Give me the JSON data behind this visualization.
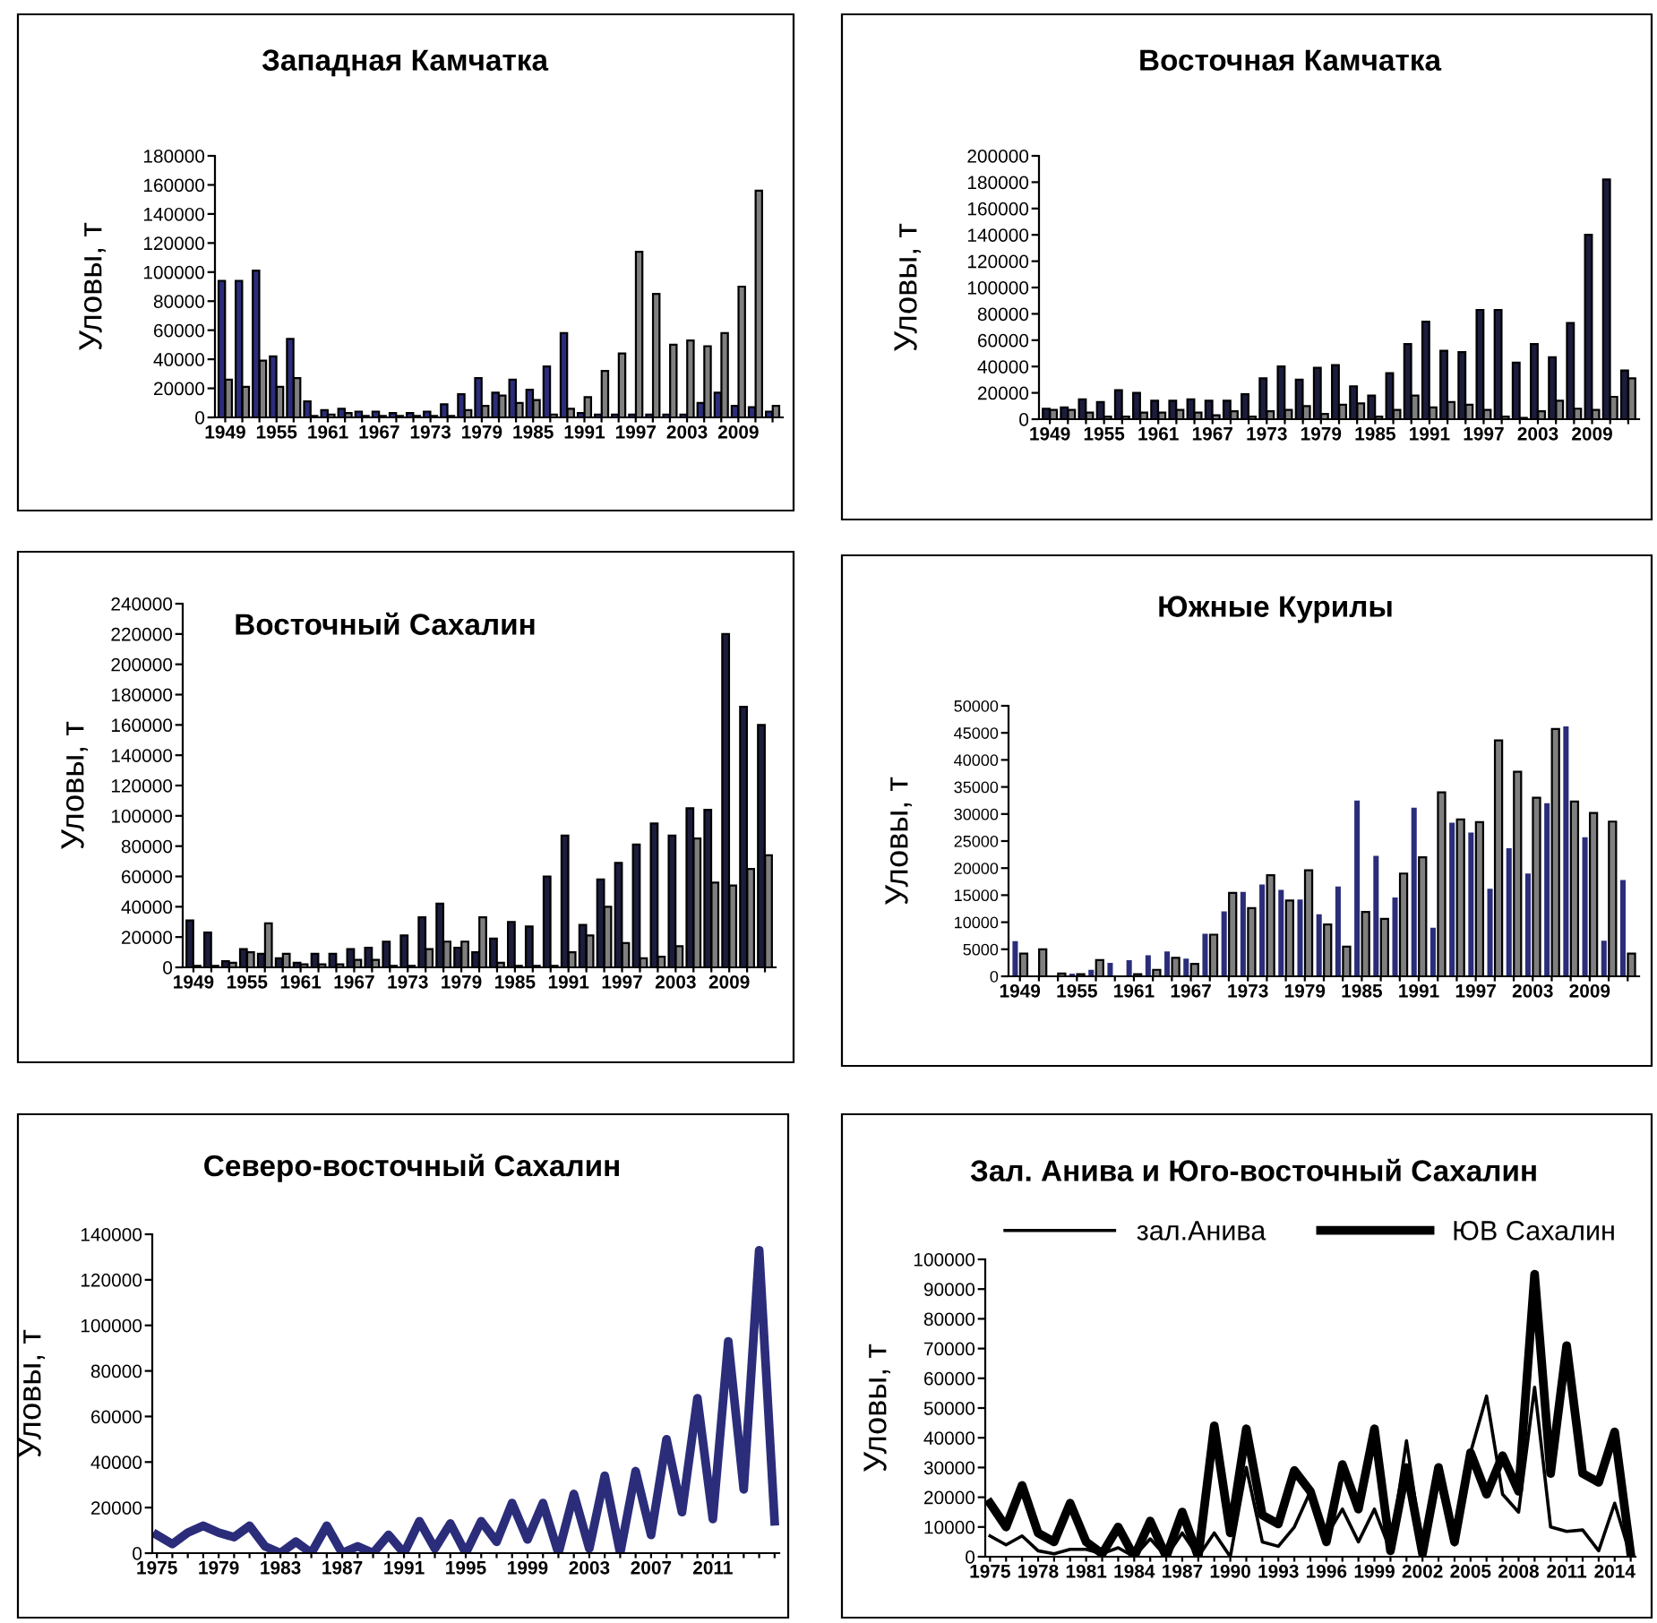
{
  "chart_data": [
    {
      "type": "bar",
      "title": "Западная Камчатка",
      "ylabel": "Уловы, т",
      "legend": false,
      "grid": false,
      "categories": [
        "1949",
        null,
        null,
        "1955",
        null,
        null,
        "1961",
        null,
        null,
        "1967",
        null,
        null,
        "1973",
        null,
        null,
        "1979",
        null,
        null,
        "1985",
        null,
        null,
        "1991",
        null,
        null,
        "1997",
        null,
        null,
        "2003",
        null,
        null,
        "2009",
        null,
        null
      ],
      "ylim": [
        0,
        180000
      ],
      "yticks": [
        0,
        20000,
        40000,
        60000,
        80000,
        100000,
        120000,
        140000,
        160000,
        180000
      ],
      "series": [
        {
          "color": "#2b2d7a",
          "values": [
            94000,
            94000,
            101000,
            42000,
            54000,
            11000,
            5000,
            6000,
            4000,
            4000,
            3000,
            3000,
            4000,
            9000,
            16000,
            27000,
            17000,
            26000,
            19000,
            35000,
            58000,
            3000,
            2000,
            2000,
            2000,
            2000,
            2000,
            2000,
            10000,
            17000,
            8000,
            7000,
            4000
          ]
        },
        {
          "color": "#7f7f7f",
          "values": [
            26000,
            21000,
            39000,
            21000,
            27000,
            1000,
            2000,
            3000,
            1000,
            1000,
            1000,
            1000,
            1000,
            1000,
            5000,
            8000,
            15000,
            10000,
            12000,
            2000,
            6000,
            14000,
            32000,
            44000,
            114000,
            85000,
            50000,
            53000,
            49000,
            58000,
            90000,
            156000,
            8000
          ]
        }
      ]
    },
    {
      "type": "bar",
      "title": "Восточная Камчатка",
      "ylabel": "Уловы, т",
      "legend": false,
      "grid": false,
      "categories": [
        "1949",
        null,
        null,
        "1955",
        null,
        null,
        "1961",
        null,
        null,
        "1967",
        null,
        null,
        "1973",
        null,
        null,
        "1979",
        null,
        null,
        "1985",
        null,
        null,
        "1991",
        null,
        null,
        "1997",
        null,
        null,
        "2003",
        null,
        null,
        "2009",
        null,
        null
      ],
      "ylim": [
        0,
        200000
      ],
      "yticks": [
        0,
        20000,
        40000,
        60000,
        80000,
        100000,
        120000,
        140000,
        160000,
        180000,
        200000
      ],
      "series": [
        {
          "color": "#1c1c3c",
          "values": [
            8000,
            9000,
            15000,
            13000,
            22000,
            20000,
            14000,
            14000,
            15000,
            14000,
            14000,
            19000,
            31000,
            40000,
            30000,
            39000,
            41000,
            25000,
            18000,
            35000,
            57000,
            74000,
            52000,
            51000,
            83000,
            83000,
            43000,
            57000,
            47000,
            73000,
            140000,
            182000,
            37000
          ]
        },
        {
          "color": "#7f7f7f",
          "values": [
            7000,
            7000,
            5000,
            2000,
            2000,
            5000,
            5000,
            7000,
            5000,
            3000,
            6000,
            2000,
            6000,
            7000,
            10000,
            4000,
            11000,
            12000,
            2000,
            7000,
            18000,
            9000,
            13000,
            11000,
            7000,
            2000,
            1000,
            6000,
            14000,
            8000,
            7000,
            17000,
            31000
          ]
        }
      ]
    },
    {
      "type": "bar",
      "title": "Восточный Сахалин",
      "ylabel": "Уловы, т",
      "legend": false,
      "grid": false,
      "categories": [
        "1949",
        null,
        null,
        "1955",
        null,
        null,
        "1961",
        null,
        null,
        "1967",
        null,
        null,
        "1973",
        null,
        null,
        "1979",
        null,
        null,
        "1985",
        null,
        null,
        "1991",
        null,
        null,
        "1997",
        null,
        null,
        "2003",
        null,
        null,
        "2009",
        null,
        null
      ],
      "ylim": [
        0,
        240000
      ],
      "yticks": [
        0,
        20000,
        40000,
        60000,
        80000,
        100000,
        120000,
        140000,
        160000,
        180000,
        200000,
        220000,
        240000
      ],
      "series": [
        {
          "color": "#1c1c3c",
          "values": [
            31000,
            23000,
            4000,
            12000,
            9000,
            6000,
            3000,
            9000,
            9000,
            12000,
            13000,
            17000,
            21000,
            33000,
            42000,
            13000,
            10000,
            19000,
            30000,
            27000,
            60000,
            87000,
            28000,
            58000,
            69000,
            81000,
            95000,
            87000,
            105000,
            104000,
            220000,
            172000,
            160000
          ]
        },
        {
          "color": "#7f7f7f",
          "values": [
            1000,
            1000,
            3000,
            10000,
            29000,
            9000,
            2000,
            2000,
            2000,
            5000,
            5000,
            1000,
            1000,
            12000,
            17000,
            17000,
            33000,
            3000,
            1000,
            1000,
            1000,
            10000,
            21000,
            40000,
            16000,
            6000,
            7000,
            14000,
            85000,
            56000,
            54000,
            65000,
            74000
          ]
        }
      ]
    },
    {
      "type": "bar",
      "title": "Южные Курилы",
      "ylabel": "Уловы, т",
      "legend": false,
      "grid": false,
      "categories": [
        "1949",
        null,
        null,
        "1955",
        null,
        null,
        "1961",
        null,
        null,
        "1967",
        null,
        null,
        "1973",
        null,
        null,
        "1979",
        null,
        null,
        "1985",
        null,
        null,
        "1991",
        null,
        null,
        "1997",
        null,
        null,
        "2003",
        null,
        null,
        "2009",
        null,
        null
      ],
      "ylim": [
        0,
        50000
      ],
      "yticks": [
        0,
        5000,
        10000,
        15000,
        20000,
        25000,
        30000,
        35000,
        40000,
        45000,
        50000
      ],
      "series": [
        {
          "color": "#2b2d7a",
          "values": [
            6300,
            0,
            0,
            300,
            1000,
            2300,
            2800,
            3700,
            4400,
            3100,
            7700,
            11800,
            15400,
            16800,
            15800,
            14000,
            11300,
            16400,
            32300,
            22100,
            14400,
            31000,
            8800,
            28200,
            26400,
            16000,
            23500,
            18800,
            31800,
            46000,
            25500,
            6400,
            17600
          ]
        },
        {
          "color": "#7f7f7f",
          "values": [
            4200,
            5000,
            500,
            400,
            3000,
            null,
            400,
            1200,
            3400,
            2300,
            7700,
            15400,
            12600,
            18700,
            14000,
            19600,
            9600,
            5500,
            11900,
            10600,
            19000,
            22000,
            34000,
            29000,
            28500,
            43600,
            37800,
            33000,
            45700,
            32300,
            30200,
            28600,
            4200
          ]
        }
      ]
    },
    {
      "type": "line",
      "title": "Северо-восточный Сахалин",
      "ylabel": "Уловы, т",
      "legend": false,
      "grid": false,
      "marker": "none",
      "categories": [
        "1975",
        null,
        null,
        null,
        "1979",
        null,
        null,
        null,
        "1983",
        null,
        null,
        null,
        "1987",
        null,
        null,
        null,
        "1991",
        null,
        null,
        null,
        "1995",
        null,
        null,
        null,
        "1999",
        null,
        null,
        null,
        "2003",
        null,
        null,
        null,
        "2007",
        null,
        null,
        null,
        "2011",
        null,
        null,
        null,
        null
      ],
      "ylim": [
        0,
        140000
      ],
      "yticks": [
        0,
        20000,
        40000,
        60000,
        80000,
        100000,
        120000,
        140000
      ],
      "series": [
        {
          "color": "#2b2d7a",
          "values": [
            8000,
            4000,
            9000,
            12000,
            9000,
            7000,
            12000,
            3000,
            0,
            5000,
            0,
            12000,
            0,
            3000,
            0,
            8000,
            0,
            14000,
            2000,
            13000,
            0,
            14000,
            5000,
            22000,
            6000,
            22000,
            0,
            26000,
            2000,
            34000,
            0,
            36000,
            8000,
            50000,
            18000,
            68000,
            15000,
            93000,
            28000,
            133000,
            14000
          ]
        }
      ]
    },
    {
      "type": "line",
      "title": "Зал. Анива и Юго-восточный Сахалин",
      "ylabel": "Уловы, т",
      "legend": "top",
      "grid": false,
      "marker": "none",
      "categories": [
        "1975",
        null,
        null,
        "1978",
        null,
        null,
        "1981",
        null,
        null,
        "1984",
        null,
        null,
        "1987",
        null,
        null,
        "1990",
        null,
        null,
        "1993",
        null,
        null,
        "1996",
        null,
        null,
        "1999",
        null,
        null,
        "2002",
        null,
        null,
        "2005",
        null,
        null,
        "2008",
        null,
        null,
        "2011",
        null,
        null,
        "2014",
        null
      ],
      "ylim": [
        0,
        100000
      ],
      "yticks": [
        0,
        10000,
        20000,
        30000,
        40000,
        50000,
        60000,
        70000,
        80000,
        90000,
        100000
      ],
      "series": [
        {
          "name": "зал.Анива",
          "color": "#000000",
          "values": [
            7000,
            4000,
            7000,
            2000,
            1000,
            2500,
            2500,
            1000,
            3000,
            0,
            6000,
            0,
            8000,
            0,
            8000,
            0,
            30000,
            5000,
            3500,
            10000,
            22000,
            7000,
            16000,
            5000,
            16000,
            2000,
            39000,
            2000,
            25000,
            4000,
            35000,
            54000,
            21000,
            15000,
            57000,
            10000,
            8500,
            9000,
            2000,
            18000,
            0
          ]
        },
        {
          "name": "ЮВ Сахалин",
          "color": "#000000",
          "values": [
            18000,
            10000,
            24000,
            8000,
            5000,
            18000,
            5000,
            1000,
            10000,
            0,
            12000,
            0,
            15000,
            0,
            44000,
            8000,
            43000,
            14000,
            11000,
            29000,
            22000,
            5000,
            31000,
            16000,
            43000,
            2000,
            30000,
            1000,
            30000,
            5000,
            35000,
            21000,
            34000,
            22000,
            95000,
            28000,
            71000,
            28000,
            25000,
            42000,
            1000
          ]
        }
      ]
    }
  ]
}
